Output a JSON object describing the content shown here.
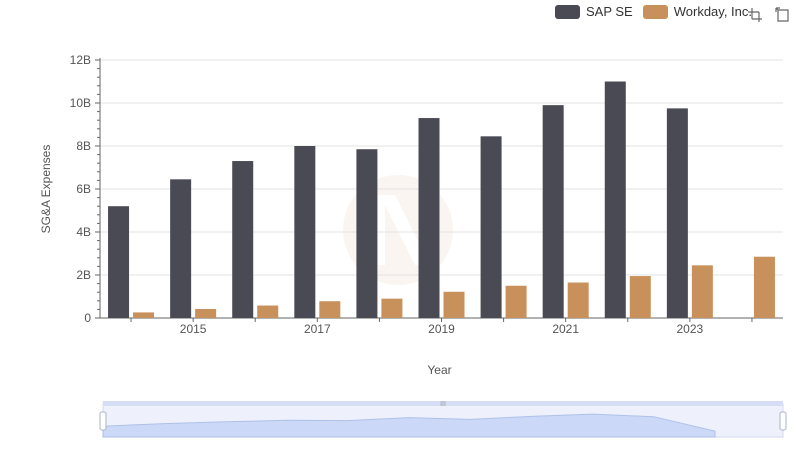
{
  "chart_data": {
    "type": "bar",
    "xlabel": "Year",
    "ylabel": "SG&A Expenses",
    "categories": [
      "2014",
      "2015",
      "2016",
      "2017",
      "2018",
      "2019",
      "2020",
      "2021",
      "2022",
      "2023",
      "2024"
    ],
    "x_tick_labels": [
      "2015",
      "2017",
      "2019",
      "2021",
      "2023"
    ],
    "y_tick_labels": [
      "0",
      "2B",
      "4B",
      "6B",
      "8B",
      "10B",
      "12B"
    ],
    "ylim": [
      0,
      12000000000
    ],
    "grid": true,
    "legend_position": "top-right",
    "series": [
      {
        "name": "SAP SE",
        "color": "#4a4a55",
        "values": [
          5200000000,
          6450000000,
          7300000000,
          8000000000,
          7850000000,
          9300000000,
          8450000000,
          9900000000,
          11000000000,
          9750000000,
          null
        ]
      },
      {
        "name": "Workday, Inc.",
        "color": "#c8915c",
        "values": [
          260000000,
          420000000,
          580000000,
          780000000,
          900000000,
          1220000000,
          1500000000,
          1650000000,
          1950000000,
          2450000000,
          2850000000
        ]
      }
    ]
  },
  "toolbox": {
    "zoom_icon": "zoom-icon",
    "restore_icon": "restore-icon"
  }
}
